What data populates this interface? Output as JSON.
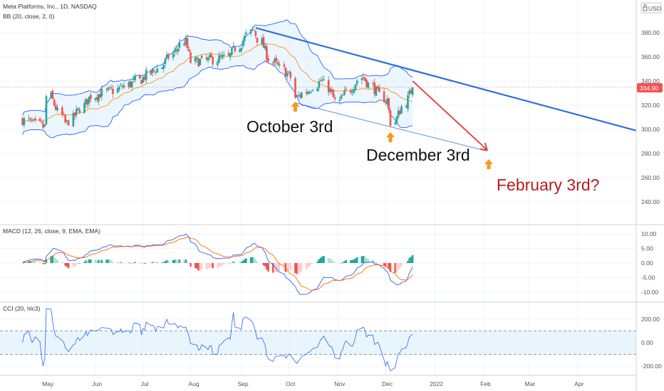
{
  "header": {
    "symbol_line": "Meta Platforms, Inc., 1D, NASDAQ",
    "bb_legend": "BB (20, close, 2, 0)",
    "currency": "USD",
    "lock_icon": "lock-icon"
  },
  "panes": {
    "macd_legend": "MACD (12, 26, close, 9, EMA, EMA)",
    "cci_legend": "CCI (20, hlc3)"
  },
  "colors": {
    "up": "#26a69a",
    "down": "#ef5350",
    "bb_line": "#2962ff",
    "bb_fill": "#e3f2fd",
    "basis": "#f7931a",
    "trend_blue": "#2f6fdb",
    "arrow_red": "#e53935",
    "marker_orange": "#f59a1b",
    "price_badge": "#ef5350",
    "anno_red": "#b71c1c"
  },
  "annotations": {
    "oct": "October 3rd",
    "dec": "December 3rd",
    "feb": "February 3rd?"
  },
  "price_axis": {
    "ticks": [
      "380.00",
      "360.00",
      "340.00",
      "320.00",
      "300.00",
      "280.00",
      "260.00",
      "240.00"
    ],
    "last_price": "334.90"
  },
  "macd_axis": {
    "ticks": [
      "10.00",
      "5.00",
      "0.00",
      "-5.00",
      "-10.00"
    ]
  },
  "cci_axis": {
    "ticks": [
      "200.00",
      "0.00",
      "-200.00"
    ]
  },
  "time_axis": {
    "labels": [
      "May",
      "Jun",
      "Jul",
      "Aug",
      "Sep",
      "Oct",
      "Nov",
      "Dec",
      "2022",
      "Feb",
      "Mar",
      "Apr"
    ]
  },
  "chart_data": {
    "type": "candlestick",
    "title": "Meta Platforms, Inc., 1D, NASDAQ",
    "ylim_price": [
      225,
      392
    ],
    "ylim_macd": [
      -13,
      12
    ],
    "ylim_cci": [
      -250,
      300
    ],
    "approx_close_path": [
      {
        "date": "2021-04-15",
        "close": 308
      },
      {
        "date": "2021-04-28",
        "close": 302
      },
      {
        "date": "2021-04-30",
        "close": 327
      },
      {
        "date": "2021-05-12",
        "close": 305
      },
      {
        "date": "2021-05-28",
        "close": 328
      },
      {
        "date": "2021-06-10",
        "close": 332
      },
      {
        "date": "2021-06-25",
        "close": 340
      },
      {
        "date": "2021-07-08",
        "close": 350
      },
      {
        "date": "2021-07-26",
        "close": 372
      },
      {
        "date": "2021-07-30",
        "close": 356
      },
      {
        "date": "2021-08-20",
        "close": 359
      },
      {
        "date": "2021-09-07",
        "close": 382
      },
      {
        "date": "2021-09-20",
        "close": 355
      },
      {
        "date": "2021-10-01",
        "close": 343
      },
      {
        "date": "2021-10-04",
        "close": 326
      },
      {
        "date": "2021-10-20",
        "close": 340
      },
      {
        "date": "2021-10-29",
        "close": 323
      },
      {
        "date": "2021-11-15",
        "close": 343
      },
      {
        "date": "2021-11-30",
        "close": 324
      },
      {
        "date": "2021-12-03",
        "close": 306
      },
      {
        "date": "2021-12-17",
        "close": 334.9
      }
    ]
  }
}
